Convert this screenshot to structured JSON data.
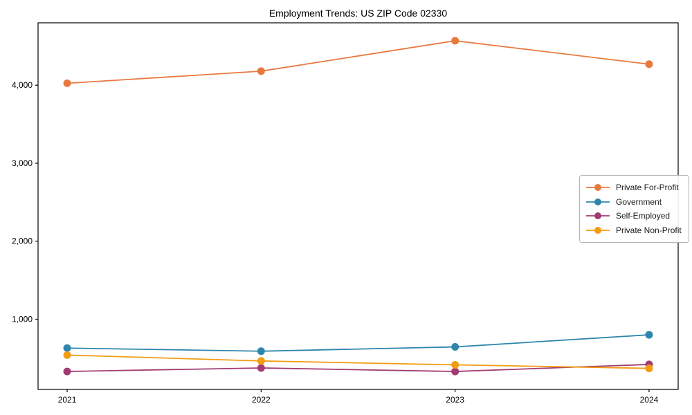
{
  "chart_data": {
    "type": "line",
    "title": "Employment Trends: US ZIP Code 02330",
    "x": [
      2021,
      2022,
      2023,
      2024
    ],
    "series": [
      {
        "name": "Private For-Profit",
        "color": "#E8793E",
        "values": [
          4025,
          4180,
          4570,
          4270
        ]
      },
      {
        "name": "Government",
        "color": "#2E86AB",
        "values": [
          630,
          590,
          645,
          800
        ]
      },
      {
        "name": "Self-Employed",
        "color": "#A23B72",
        "values": [
          330,
          375,
          330,
          420
        ]
      },
      {
        "name": "Private Non-Profit",
        "color": "#F39C12",
        "values": [
          540,
          465,
          415,
          370
        ]
      }
    ],
    "xlabel": "",
    "ylabel": "",
    "xlim": [
      2020.85,
      2024.15
    ],
    "ylim": [
      100,
      4800
    ],
    "xticks": [
      2021,
      2022,
      2023,
      2024
    ],
    "xtick_labels": [
      "2021",
      "2022",
      "2023",
      "2024"
    ],
    "yticks": [
      1000,
      2000,
      3000,
      4000
    ],
    "ytick_labels": [
      "1,000",
      "2,000",
      "3,000",
      "4,000"
    ],
    "grid": false,
    "legend_position": "center right",
    "marker": "circle",
    "background_color": "#ffffff",
    "axis_color": "#000000",
    "tick_label_color": "#000000"
  }
}
